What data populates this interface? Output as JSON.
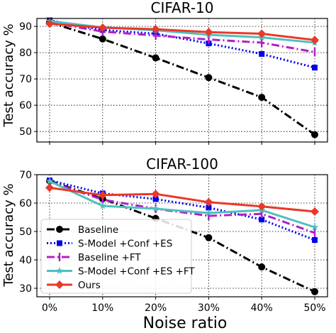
{
  "chart_data": {
    "type": "line",
    "xlabel": "Noise ratio",
    "ylabel": "Test accuracy %",
    "x_categories": [
      "0%",
      "10%",
      "20%",
      "30%",
      "40%",
      "50%"
    ],
    "grid": true,
    "legend_placement": "lower-left of bottom panel",
    "series_styles": [
      {
        "name": "Baseline",
        "color": "#000000",
        "dash": "dashdot",
        "marker": "circle"
      },
      {
        "name": "S-Model +Conf +ES",
        "color": "#0000ee",
        "dash": "dotted",
        "marker": "square"
      },
      {
        "name": "Baseline +FT",
        "color": "#b21fc4",
        "dash": "dashdot",
        "marker": "vline"
      },
      {
        "name": "S-Model +Conf +ES +FT",
        "color": "#4fbfbf",
        "dash": "solid",
        "marker": "star"
      },
      {
        "name": "Ours",
        "color": "#e8392a",
        "dash": "solid",
        "marker": "diamond"
      }
    ],
    "panels": [
      {
        "title": "CIFAR-10",
        "ylim": [
          46,
          93
        ],
        "yticks": [
          50,
          60,
          70,
          80,
          90
        ],
        "series": [
          {
            "name": "Baseline",
            "values": [
              91.5,
              85.2,
              78.0,
              70.5,
              63.0,
              48.8
            ]
          },
          {
            "name": "S-Model +Conf +ES",
            "values": [
              92.3,
              88.6,
              87.2,
              83.5,
              79.5,
              74.3
            ]
          },
          {
            "name": "Baseline +FT",
            "values": [
              91.5,
              88.0,
              86.5,
              85.0,
              83.8,
              80.2
            ]
          },
          {
            "name": "S-Model +Conf +ES +FT",
            "values": [
              92.0,
              89.6,
              88.5,
              86.8,
              85.8,
              83.8
            ]
          },
          {
            "name": "Ours",
            "values": [
              91.0,
              89.5,
              88.9,
              87.8,
              87.2,
              84.8
            ]
          }
        ]
      },
      {
        "title": "CIFAR-100",
        "ylim": [
          27,
          70
        ],
        "yticks": [
          30,
          40,
          50,
          60,
          70
        ],
        "series": [
          {
            "name": "Baseline",
            "values": [
              67.8,
              61.5,
              54.6,
              47.8,
              37.5,
              28.8
            ]
          },
          {
            "name": "S-Model +Conf +ES",
            "values": [
              68.0,
              63.4,
              61.4,
              58.4,
              54.2,
              47.0
            ]
          },
          {
            "name": "Baseline +FT",
            "values": [
              67.5,
              61.2,
              58.0,
              55.5,
              56.2,
              49.5
            ]
          },
          {
            "name": "S-Model +Conf +ES +FT",
            "values": [
              67.7,
              59.0,
              58.0,
              56.5,
              57.5,
              51.5
            ]
          },
          {
            "name": "Ours",
            "values": [
              65.4,
              62.8,
              63.2,
              60.3,
              58.8,
              57.0
            ]
          }
        ]
      }
    ]
  }
}
